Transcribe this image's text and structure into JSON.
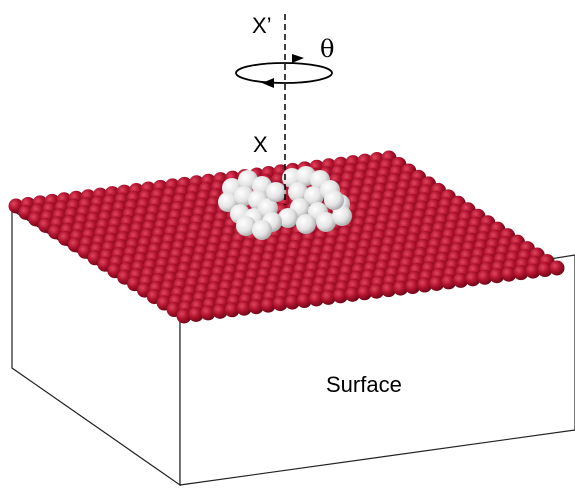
{
  "labels": {
    "axis_top": "X’",
    "rotation": "θ",
    "axis_bottom": "X",
    "surface": "Surface"
  }
}
